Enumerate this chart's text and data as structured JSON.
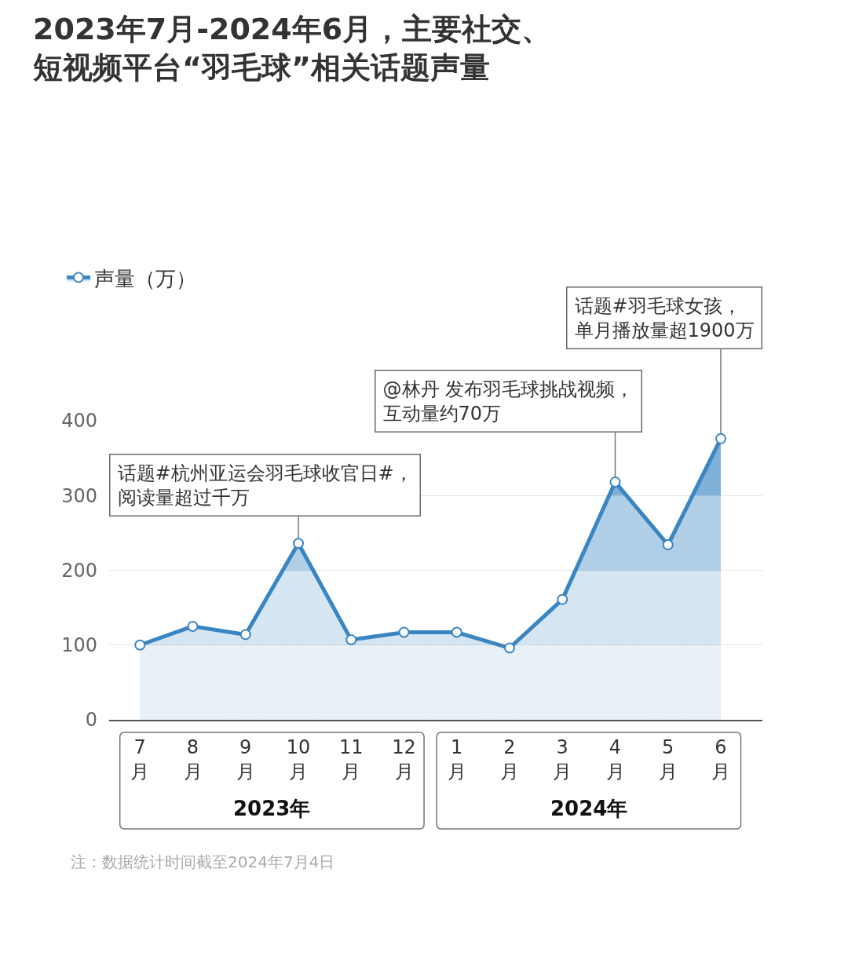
{
  "chart_data": {
    "type": "area",
    "title": "2023年7月-2024年6月，主要社交、短视频平台“羽毛球”相关话题声量",
    "categories": [
      "7\n月",
      "8\n月",
      "9\n月",
      "10\n月",
      "11\n月",
      "12\n月",
      "1\n月",
      "2\n月",
      "3\n月",
      "4\n月",
      "5\n月",
      "6\n月"
    ],
    "series": [
      {
        "name": "声量（万）",
        "color": "#3a86c2",
        "values": [
          100,
          125,
          114,
          236,
          107,
          117,
          117,
          96,
          161,
          318,
          234,
          376
        ]
      }
    ],
    "ylim": [
      0,
      400
    ],
    "yticks": [
      0,
      100,
      200,
      300,
      400
    ],
    "grid": "y",
    "legend": "top left",
    "marker": "circle",
    "annotations": [
      {
        "text": "话题#杭州亚运会羽毛球收官日#，阅读量超过千万",
        "x": "10\n月",
        "y": 236
      },
      {
        "text": "@林丹 发布羽毛球挑战视频，互动量约70万",
        "x": "4\n月",
        "y": 318
      },
      {
        "text": "话题#羽毛球女孩，单月播放量超1900万",
        "x": "6\n月",
        "y": 376
      },
      "2023年",
      "2024年",
      "注：数据统计时间截至2024年7月4日"
    ]
  }
}
